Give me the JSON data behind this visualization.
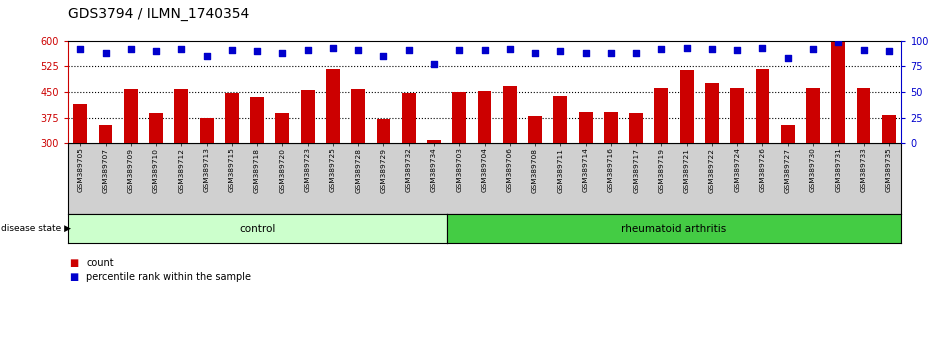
{
  "title": "GDS3794 / ILMN_1740354",
  "samples": [
    "GSM389705",
    "GSM389707",
    "GSM389709",
    "GSM389710",
    "GSM389712",
    "GSM389713",
    "GSM389715",
    "GSM389718",
    "GSM389720",
    "GSM389723",
    "GSM389725",
    "GSM389728",
    "GSM389729",
    "GSM389732",
    "GSM389734",
    "GSM389703",
    "GSM389704",
    "GSM389706",
    "GSM389708",
    "GSM389711",
    "GSM389714",
    "GSM389716",
    "GSM389717",
    "GSM389719",
    "GSM389721",
    "GSM389722",
    "GSM389724",
    "GSM389726",
    "GSM389727",
    "GSM389730",
    "GSM389731",
    "GSM389733",
    "GSM389735"
  ],
  "counts": [
    415,
    355,
    458,
    390,
    458,
    375,
    447,
    435,
    390,
    455,
    516,
    460,
    370,
    448,
    310,
    450,
    452,
    467,
    380,
    438,
    393,
    392,
    390,
    463,
    513,
    477,
    463,
    518,
    355,
    463,
    597,
    463,
    383
  ],
  "percentiles": [
    92,
    88,
    92,
    90,
    92,
    85,
    91,
    90,
    88,
    91,
    93,
    91,
    85,
    91,
    77,
    91,
    91,
    92,
    88,
    90,
    88,
    88,
    88,
    92,
    93,
    92,
    91,
    93,
    83,
    92,
    99,
    91,
    90
  ],
  "group_control_count": 15,
  "group_ra_count": 18,
  "ymin": 300,
  "ymax": 600,
  "yticks_left": [
    300,
    375,
    450,
    525,
    600
  ],
  "yticks_right": [
    0,
    25,
    50,
    75,
    100
  ],
  "bar_color": "#cc0000",
  "dot_color": "#0000cc",
  "control_bg": "#ccffcc",
  "ra_bg": "#44cc44",
  "title_fontsize": 10,
  "tick_fontsize": 7,
  "bar_width": 0.55,
  "dot_size": 15
}
